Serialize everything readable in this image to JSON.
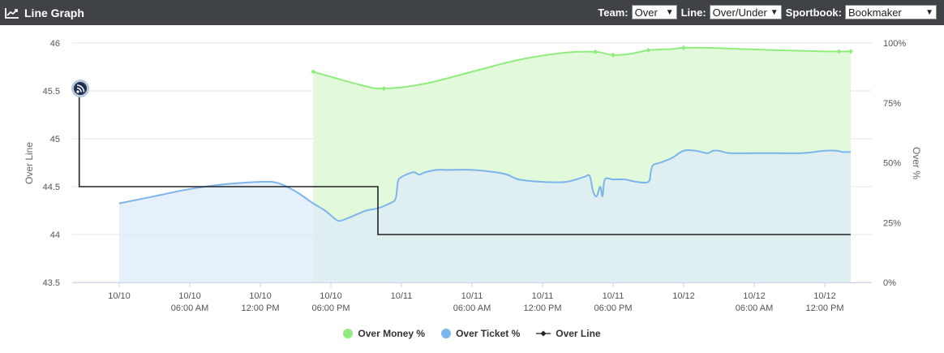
{
  "header": {
    "title": "Line Graph",
    "filters": [
      {
        "label": "Team:",
        "value": "Over"
      },
      {
        "label": "Line:",
        "value": "Over/Under"
      },
      {
        "label": "Sportbook:",
        "value": "Bookmaker"
      }
    ]
  },
  "colors": {
    "money": "#90ed7d",
    "money_fill": "#e2f9dc",
    "ticket": "#7cb5ec",
    "ticket_fill": "#deebf8",
    "overlap_fill": "#cbe9e0",
    "line": "#222222"
  },
  "chart_data": {
    "type": "line",
    "x_ticks": [
      {
        "l1": "10/10",
        "l2": "",
        "t": 0
      },
      {
        "l1": "10/10",
        "l2": "06:00 AM",
        "t": 6
      },
      {
        "l1": "10/10",
        "l2": "12:00 PM",
        "t": 12
      },
      {
        "l1": "10/10",
        "l2": "06:00 PM",
        "t": 18
      },
      {
        "l1": "10/11",
        "l2": "",
        "t": 24
      },
      {
        "l1": "10/11",
        "l2": "06:00 AM",
        "t": 30
      },
      {
        "l1": "10/11",
        "l2": "12:00 PM",
        "t": 36
      },
      {
        "l1": "10/11",
        "l2": "06:00 PM",
        "t": 42
      },
      {
        "l1": "10/12",
        "l2": "",
        "t": 48
      },
      {
        "l1": "10/12",
        "l2": "06:00 AM",
        "t": 54
      },
      {
        "l1": "10/12",
        "l2": "12:00 PM",
        "t": 60
      }
    ],
    "x_range": [
      -4,
      64
    ],
    "y_left": {
      "label": "Over Line",
      "range": [
        43.5,
        46
      ],
      "ticks": [
        "46",
        "45.5",
        "45",
        "44.5",
        "44",
        "43.5"
      ]
    },
    "y_right": {
      "label": "Over %",
      "range": [
        0,
        100
      ],
      "ticks": [
        "100%",
        "75%",
        "50%",
        "25%",
        "0%"
      ]
    },
    "legend": [
      "Over Money %",
      "Over Ticket %",
      "Over Line"
    ],
    "series": [
      {
        "name": "Over Money %",
        "axis": "right",
        "points": [
          [
            16.5,
            88
          ],
          [
            20.5,
            82.5
          ],
          [
            22.5,
            81
          ],
          [
            26,
            83
          ],
          [
            30,
            88
          ],
          [
            34,
            93
          ],
          [
            38,
            96
          ],
          [
            40.5,
            96.3
          ],
          [
            42,
            95
          ],
          [
            43.5,
            95.5
          ],
          [
            45,
            97
          ],
          [
            47,
            97.5
          ],
          [
            48,
            98
          ],
          [
            50,
            98
          ],
          [
            53,
            97.5
          ],
          [
            56,
            97
          ],
          [
            60,
            96.5
          ],
          [
            61.2,
            96.5
          ],
          [
            62.2,
            96.5
          ]
        ],
        "markers": [
          [
            16.5,
            88
          ],
          [
            22.5,
            81
          ],
          [
            40.5,
            96.3
          ],
          [
            42,
            95
          ],
          [
            45,
            97
          ],
          [
            48,
            98
          ],
          [
            61.2,
            96.5
          ],
          [
            62.2,
            96.5
          ]
        ]
      },
      {
        "name": "Over Ticket %",
        "axis": "right",
        "points": [
          [
            0,
            33
          ],
          [
            3,
            36
          ],
          [
            6,
            39
          ],
          [
            9,
            41
          ],
          [
            12,
            42
          ],
          [
            13.5,
            41.5
          ],
          [
            15,
            38
          ],
          [
            16.5,
            33
          ],
          [
            17.5,
            30
          ],
          [
            18.5,
            26
          ],
          [
            19,
            26
          ],
          [
            20,
            28
          ],
          [
            21,
            30
          ],
          [
            22,
            31
          ],
          [
            23,
            33
          ],
          [
            23.5,
            35
          ],
          [
            23.7,
            42
          ],
          [
            24,
            44
          ],
          [
            25,
            46
          ],
          [
            25.5,
            45
          ],
          [
            26,
            46
          ],
          [
            27,
            47
          ],
          [
            28,
            47
          ],
          [
            30,
            47
          ],
          [
            32,
            46
          ],
          [
            33,
            45
          ],
          [
            34,
            43
          ],
          [
            36,
            42
          ],
          [
            38,
            42
          ],
          [
            39.5,
            44
          ],
          [
            40,
            44.5
          ],
          [
            40.3,
            38
          ],
          [
            40.6,
            36
          ],
          [
            40.9,
            40
          ],
          [
            41.1,
            36
          ],
          [
            41.3,
            43
          ],
          [
            42,
            43
          ],
          [
            43,
            43
          ],
          [
            44,
            42
          ],
          [
            45,
            42
          ],
          [
            45.2,
            46
          ],
          [
            45.4,
            49
          ],
          [
            46,
            50
          ],
          [
            47,
            52
          ],
          [
            48,
            55
          ],
          [
            49,
            55
          ],
          [
            50,
            54
          ],
          [
            50.5,
            55
          ],
          [
            51,
            55
          ],
          [
            52,
            54
          ],
          [
            55,
            54
          ],
          [
            58,
            54
          ],
          [
            60,
            55
          ],
          [
            61,
            55
          ],
          [
            61.5,
            54.5
          ],
          [
            62.2,
            54.5
          ]
        ]
      },
      {
        "name": "Over Line",
        "axis": "left",
        "points": [
          [
            -4,
            45.5
          ],
          [
            -3.4,
            45.5
          ],
          [
            -3.4,
            45
          ],
          [
            -3.4,
            44.5
          ],
          [
            22,
            44.5
          ],
          [
            22,
            44
          ],
          [
            62.2,
            44
          ]
        ]
      }
    ]
  }
}
